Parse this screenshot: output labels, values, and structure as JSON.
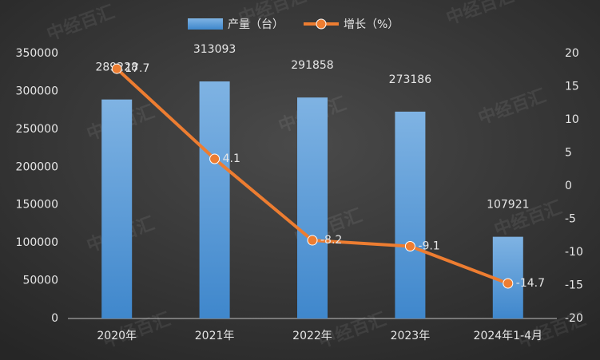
{
  "chart_data": {
    "type": "bar-line",
    "watermark": "中经百汇",
    "categories": [
      "2020年",
      "2021年",
      "2022年",
      "2023年",
      "2024年1-4月"
    ],
    "series": [
      {
        "name": "产量（台）",
        "type": "bar",
        "color": "#5b9bd5",
        "values": [
          289228,
          313093,
          291858,
          273186,
          107921
        ]
      },
      {
        "name": "增长（%）",
        "type": "line",
        "axis": "y2",
        "color": "#ed7d31",
        "values": [
          17.7,
          4.1,
          -8.2,
          -9.1,
          -14.7
        ]
      }
    ],
    "ylim": [
      0,
      350000
    ],
    "yticks": [
      0,
      50000,
      100000,
      150000,
      200000,
      250000,
      300000,
      350000
    ],
    "y2lim": [
      -20,
      20
    ],
    "y2ticks": [
      -20,
      -15,
      -10,
      -5,
      0,
      5,
      10,
      15,
      20
    ],
    "legend": "top",
    "grid": false
  }
}
